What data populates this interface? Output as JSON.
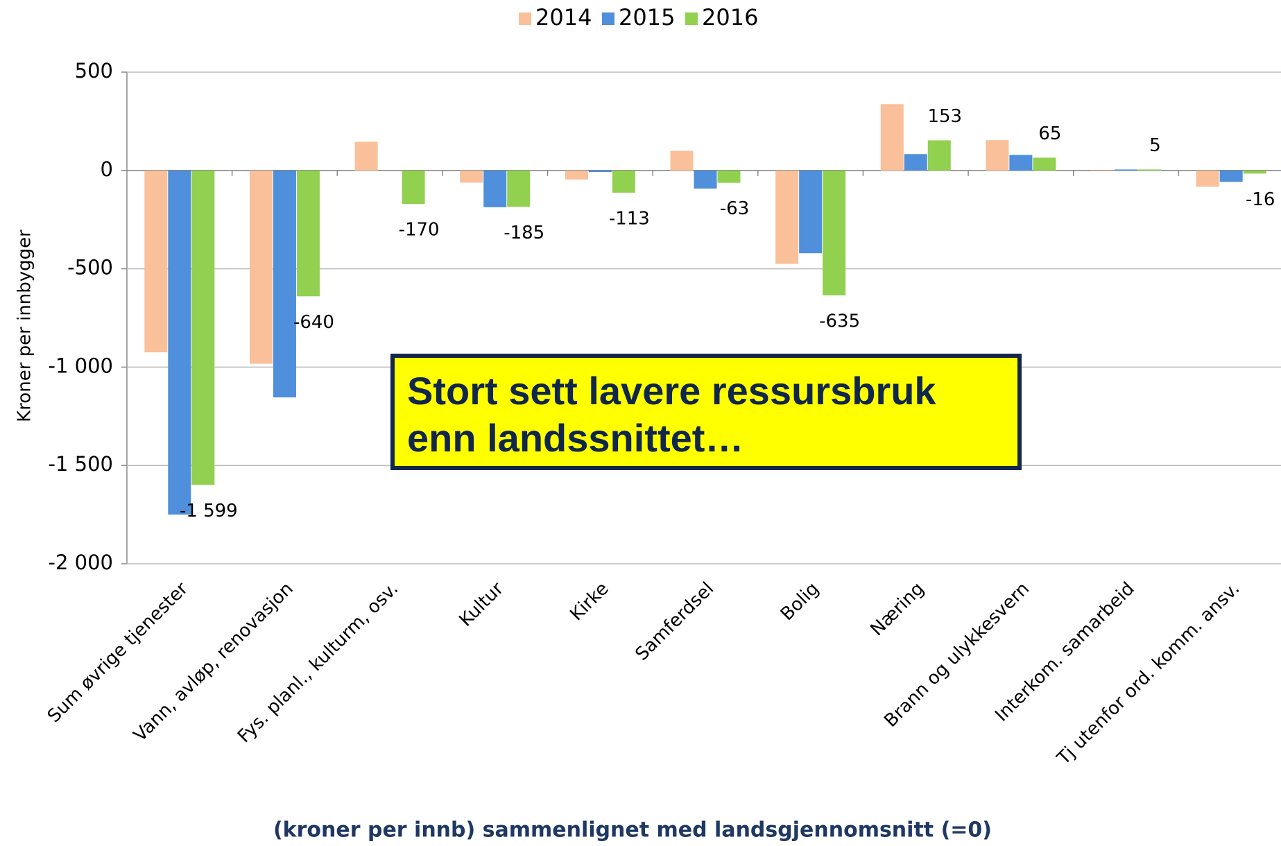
{
  "chart_data": {
    "type": "bar",
    "y_label": "Kroner per innbygger",
    "x_label": "(kroner per innb) sammenlignet med landsgjennomsnitt (=0)",
    "annotation": "Stort sett lavere ressursbruk enn landssnittet…",
    "categories": [
      "Sum øvrige tjenester",
      "Vann, avløp, renovasjon",
      "Fys. planl., kulturm, osv.",
      "Kultur",
      "Kirke",
      "Samferdsel",
      "Bolig",
      "Næring",
      "Brann og ulykkesvern",
      "Interkom. samarbeid",
      "Tj utenfor ord. komm. ansv."
    ],
    "series": [
      {
        "name": "2014",
        "color": "#f9c09a",
        "values": [
          -925,
          -983,
          146,
          -62,
          -46,
          100,
          -475,
          337,
          154,
          -4,
          -83
        ]
      },
      {
        "name": "2015",
        "color": "#4f8fdb",
        "values": [
          -1750,
          -1154,
          0,
          -187,
          -8,
          -92,
          -421,
          83,
          79,
          5,
          -58
        ]
      },
      {
        "name": "2016",
        "color": "#92d050",
        "values": [
          -1599,
          -640,
          -170,
          -185,
          -113,
          -63,
          -635,
          153,
          65,
          5,
          -16
        ],
        "value_labels": [
          "-1 599",
          "-640",
          "-170",
          "-185",
          "-113",
          "-63",
          "-635",
          "153",
          "65",
          "5",
          "-16"
        ]
      }
    ],
    "ylim": [
      -2000,
      500
    ],
    "yticks": [
      500,
      0,
      -500,
      {
        "value": -1000,
        "label": "-1 000"
      },
      {
        "value": -1500,
        "label": "-1 500"
      },
      {
        "value": -2000,
        "label": "-2 000"
      }
    ],
    "grid": true,
    "legend": "top"
  }
}
